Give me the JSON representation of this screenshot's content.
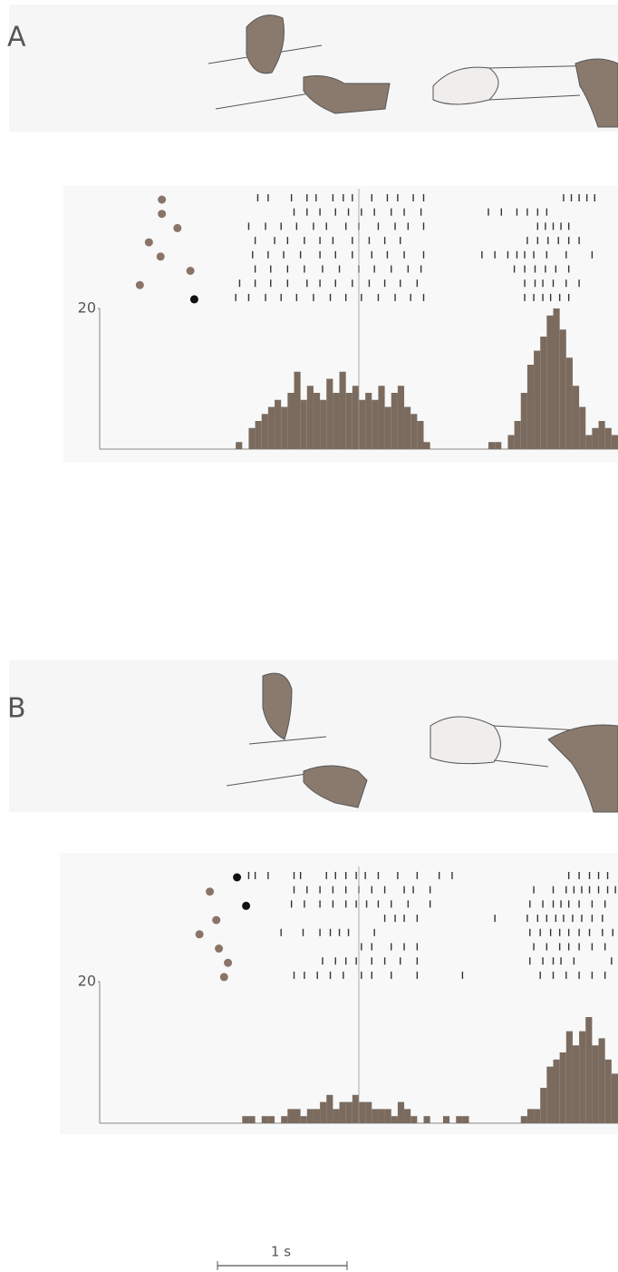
{
  "chart_data": [
    {
      "type": "histogram",
      "panel": "A",
      "xlim": [
        -2,
        2
      ],
      "ylim": [
        0,
        20
      ],
      "yticks": [
        20
      ],
      "color": "#7b6b5f",
      "bins": [
        -2,
        -1.95,
        -1.9,
        -1.85,
        -1.8,
        -1.75,
        -1.7,
        -1.65,
        -1.6,
        -1.55,
        -1.5,
        -1.45,
        -1.4,
        -1.35,
        -1.3,
        -1.25,
        -1.2,
        -1.15,
        -1.1,
        -1.05,
        -1,
        -0.95,
        -0.9,
        -0.85,
        -0.8,
        -0.75,
        -0.7,
        -0.65,
        -0.6,
        -0.55,
        -0.5,
        -0.45,
        -0.4,
        -0.35,
        -0.3,
        -0.25,
        -0.2,
        -0.15,
        -0.1,
        -0.05,
        0,
        0.05,
        0.1,
        0.15,
        0.2,
        0.25,
        0.3,
        0.35,
        0.4,
        0.45,
        0.5,
        0.55,
        0.6,
        0.65,
        0.7,
        0.75,
        0.8,
        0.85,
        0.9,
        0.95,
        1,
        1.05,
        1.1,
        1.15,
        1.2,
        1.25,
        1.3,
        1.35,
        1.4,
        1.45,
        1.5,
        1.55,
        1.6,
        1.65,
        1.7,
        1.75,
        1.8,
        1.85,
        1.9,
        1.95,
        2
      ],
      "values": [
        0,
        0,
        0,
        0,
        0,
        0,
        0,
        0,
        0,
        0,
        0,
        0,
        0,
        0,
        0,
        0,
        0,
        0,
        0,
        0,
        0,
        1,
        0,
        3,
        4,
        5,
        6,
        7,
        6,
        8,
        11,
        7,
        9,
        8,
        7,
        10,
        8,
        11,
        8,
        9,
        7,
        8,
        7,
        9,
        6,
        8,
        9,
        6,
        5,
        4,
        1,
        0,
        0,
        0,
        0,
        0,
        0,
        0,
        0,
        0,
        1,
        1,
        0,
        2,
        4,
        8,
        12,
        14,
        16,
        19,
        20,
        17,
        13,
        9,
        6,
        2,
        3,
        4,
        3,
        2
      ],
      "rasters": [
        [
          -0.78,
          -0.7,
          -0.52,
          -0.4,
          -0.33,
          -0.2,
          -0.12,
          -0.05,
          0.1,
          0.22,
          0.3,
          0.42,
          0.5,
          1.58,
          1.64,
          1.7,
          1.76,
          1.82
        ],
        [
          -0.5,
          -0.4,
          -0.3,
          -0.18,
          -0.08,
          0.02,
          0.12,
          0.25,
          0.35,
          0.48,
          1.0,
          1.1,
          1.22,
          1.3,
          1.38,
          1.45
        ],
        [
          -0.85,
          -0.72,
          -0.6,
          -0.48,
          -0.35,
          -0.25,
          -0.1,
          0.0,
          0.15,
          0.28,
          0.38,
          0.5,
          1.38,
          1.44,
          1.5,
          1.56,
          1.62
        ],
        [
          -0.8,
          -0.65,
          -0.55,
          -0.42,
          -0.3,
          -0.2,
          -0.05,
          0.08,
          0.2,
          0.32,
          1.3,
          1.38,
          1.46,
          1.54,
          1.62,
          1.7
        ],
        [
          -0.82,
          -0.7,
          -0.58,
          -0.45,
          -0.3,
          -0.18,
          -0.05,
          0.1,
          0.22,
          0.35,
          0.5,
          0.95,
          1.05,
          1.15,
          1.22,
          1.28,
          1.35,
          1.45,
          1.6,
          1.8
        ],
        [
          -0.8,
          -0.68,
          -0.55,
          -0.42,
          -0.28,
          -0.15,
          0.0,
          0.12,
          0.25,
          0.38,
          0.48,
          1.2,
          1.28,
          1.36,
          1.44,
          1.52,
          1.62
        ],
        [
          -0.92,
          -0.8,
          -0.68,
          -0.55,
          -0.4,
          -0.3,
          -0.18,
          -0.05,
          0.08,
          0.2,
          0.32,
          0.45,
          1.28,
          1.36,
          1.42,
          1.5,
          1.6,
          1.7
        ],
        [
          -0.95,
          -0.85,
          -0.72,
          -0.6,
          -0.48,
          -0.35,
          -0.22,
          -0.1,
          0.02,
          0.15,
          0.28,
          0.4,
          0.5,
          1.28,
          1.35,
          1.42,
          1.48,
          1.55,
          1.62
        ]
      ],
      "markers": [
        -1.52,
        -1.52,
        -1.4,
        -1.62,
        -1.53,
        -1.3,
        -1.69,
        -1.27
      ],
      "marker_colors": [
        "#8a7468",
        "#8a7468",
        "#8a7468",
        "#8a7468",
        "#8a7468",
        "#8a7468",
        "#8a7468",
        "#111111"
      ]
    },
    {
      "type": "histogram",
      "panel": "B",
      "xlim": [
        -2,
        2
      ],
      "ylim": [
        0,
        20
      ],
      "yticks": [
        20
      ],
      "color": "#7b6b5f",
      "bins": [
        -2,
        -1.95,
        -1.9,
        -1.85,
        -1.8,
        -1.75,
        -1.7,
        -1.65,
        -1.6,
        -1.55,
        -1.5,
        -1.45,
        -1.4,
        -1.35,
        -1.3,
        -1.25,
        -1.2,
        -1.15,
        -1.1,
        -1.05,
        -1,
        -0.95,
        -0.9,
        -0.85,
        -0.8,
        -0.75,
        -0.7,
        -0.65,
        -0.6,
        -0.55,
        -0.5,
        -0.45,
        -0.4,
        -0.35,
        -0.3,
        -0.25,
        -0.2,
        -0.15,
        -0.1,
        -0.05,
        0,
        0.05,
        0.1,
        0.15,
        0.2,
        0.25,
        0.3,
        0.35,
        0.4,
        0.45,
        0.5,
        0.55,
        0.6,
        0.65,
        0.7,
        0.75,
        0.8,
        0.85,
        0.9,
        0.95,
        1,
        1.05,
        1.1,
        1.15,
        1.2,
        1.25,
        1.3,
        1.35,
        1.4,
        1.45,
        1.5,
        1.55,
        1.6,
        1.65,
        1.7,
        1.75,
        1.8,
        1.85,
        1.9,
        1.95,
        2
      ],
      "values": [
        0,
        0,
        0,
        0,
        0,
        0,
        0,
        0,
        0,
        0,
        0,
        0,
        0,
        0,
        0,
        0,
        0,
        0,
        0,
        0,
        0,
        0,
        1,
        1,
        0,
        1,
        1,
        0,
        1,
        2,
        2,
        1,
        2,
        2,
        3,
        4,
        2,
        3,
        3,
        4,
        3,
        3,
        2,
        2,
        2,
        1,
        3,
        2,
        1,
        0,
        1,
        0,
        0,
        1,
        0,
        1,
        1,
        0,
        0,
        0,
        0,
        0,
        0,
        0,
        0,
        1,
        2,
        2,
        5,
        8,
        9,
        10,
        13,
        11,
        13,
        15,
        11,
        12,
        9,
        7
      ],
      "rasters": [
        [
          -0.85,
          -0.8,
          -0.7,
          -0.5,
          -0.45,
          -0.25,
          -0.18,
          -0.1,
          -0.02,
          0.05,
          0.15,
          0.3,
          0.45,
          0.62,
          0.72,
          1.62,
          1.7,
          1.78,
          1.85,
          1.92
        ],
        [
          -0.5,
          -0.4,
          -0.3,
          -0.2,
          -0.1,
          0.0,
          0.1,
          0.2,
          0.35,
          0.42,
          0.55,
          1.35,
          1.5,
          1.6,
          1.66,
          1.72,
          1.78,
          1.85,
          1.92,
          1.98
        ],
        [
          -0.52,
          -0.42,
          -0.3,
          -0.2,
          -0.1,
          -0.02,
          0.06,
          0.15,
          0.25,
          0.38,
          0.55,
          1.32,
          1.42,
          1.5,
          1.56,
          1.62,
          1.7,
          1.8,
          1.9
        ],
        [
          0.2,
          0.28,
          0.35,
          0.45,
          1.05,
          1.3,
          1.38,
          1.45,
          1.52,
          1.58,
          1.65,
          1.72,
          1.8,
          1.88
        ],
        [
          -0.6,
          -0.43,
          -0.3,
          -0.22,
          -0.15,
          -0.08,
          0.12,
          1.32,
          1.4,
          1.48,
          1.55,
          1.62,
          1.7,
          1.78,
          1.88,
          1.96
        ],
        [
          0.02,
          0.1,
          0.25,
          0.35,
          0.45,
          1.35,
          1.45,
          1.55,
          1.62,
          1.7,
          1.8,
          1.9
        ],
        [
          -0.28,
          -0.18,
          -0.1,
          -0.02,
          0.1,
          0.2,
          0.32,
          0.45,
          1.32,
          1.42,
          1.5,
          1.56,
          1.66,
          1.95
        ],
        [
          -0.5,
          -0.42,
          -0.32,
          -0.22,
          -0.12,
          0.02,
          0.1,
          0.25,
          0.45,
          0.8,
          1.4,
          1.5,
          1.6,
          1.7,
          1.8,
          1.9
        ]
      ],
      "markers": [
        -0.94,
        -1.15,
        -0.87,
        -1.1,
        -1.23,
        -1.08,
        -1.01,
        -1.04
      ],
      "marker_colors": [
        "#111111",
        "#8a7468",
        "#111111",
        "#8a7468",
        "#8a7468",
        "#8a7468",
        "#8a7468",
        "#8a7468"
      ]
    }
  ],
  "scale_bar": {
    "label": "1 s",
    "length": 1
  }
}
